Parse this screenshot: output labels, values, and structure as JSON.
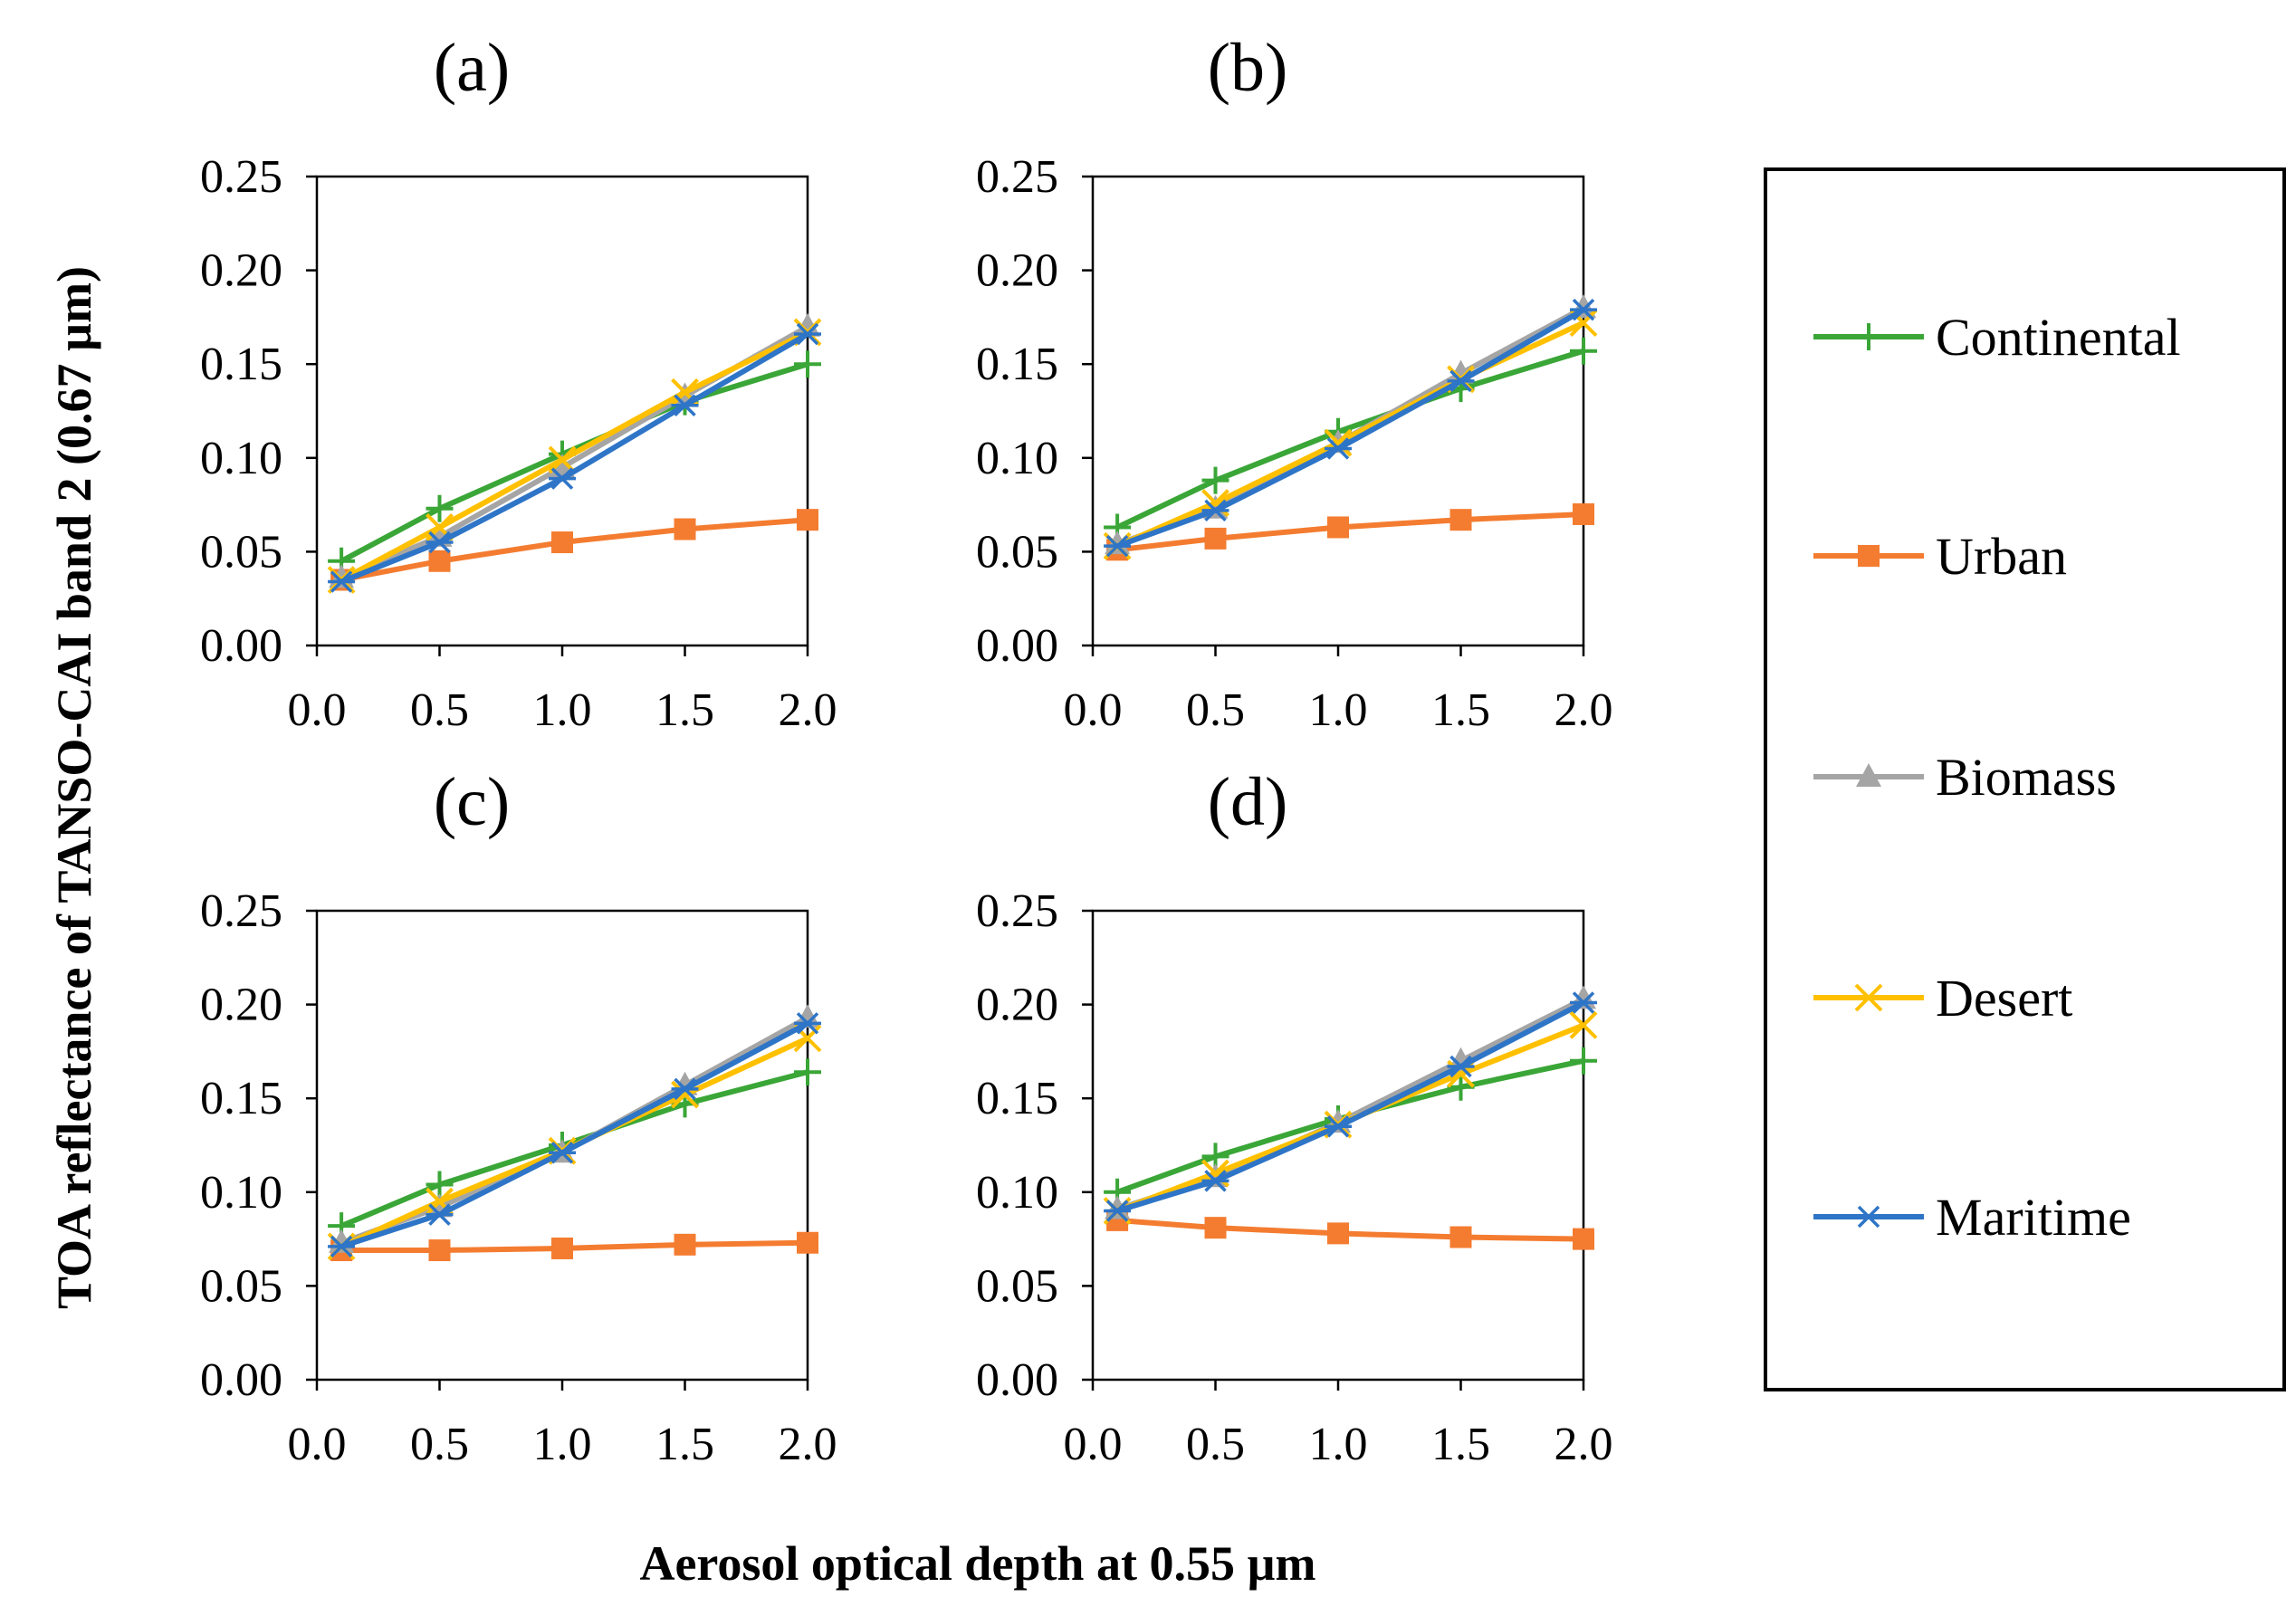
{
  "chart_data": {
    "type": "line",
    "shared_ylabel": "TOA reflectance of TANSO-CAI band 2 (0.67 µm)",
    "shared_xlabel": "Aerosol optical depth at 0.55 µm",
    "xlim": [
      0,
      2
    ],
    "ylim": [
      0,
      0.25
    ],
    "x_ticks": [
      "0.0",
      "0.5",
      "1.0",
      "1.5",
      "2.0"
    ],
    "y_ticks": [
      "0.00",
      "0.05",
      "0.10",
      "0.15",
      "0.20",
      "0.25"
    ],
    "grid": false,
    "legend_position": "right",
    "x": [
      0.1,
      0.5,
      1.0,
      1.5,
      2.0
    ],
    "series_styles": [
      {
        "name": "Continental",
        "color": "#3aa637",
        "marker": "plus"
      },
      {
        "name": "Urban",
        "color": "#f47c30",
        "marker": "square"
      },
      {
        "name": "Biomass",
        "color": "#a5a5a5",
        "marker": "triangle"
      },
      {
        "name": "Desert",
        "color": "#ffc000",
        "marker": "x"
      },
      {
        "name": "Maritime",
        "color": "#2e75c7",
        "marker": "asterisk"
      }
    ],
    "panels": [
      {
        "title": "(a)",
        "series": [
          {
            "name": "Continental",
            "values": [
              0.045,
              0.073,
              0.102,
              0.13,
              0.15
            ]
          },
          {
            "name": "Urban",
            "values": [
              0.035,
              0.045,
              0.055,
              0.062,
              0.067
            ]
          },
          {
            "name": "Biomass",
            "values": [
              0.036,
              0.058,
              0.095,
              0.133,
              0.17
            ]
          },
          {
            "name": "Desert",
            "values": [
              0.035,
              0.063,
              0.099,
              0.135,
              0.167
            ]
          },
          {
            "name": "Maritime",
            "values": [
              0.034,
              0.055,
              0.089,
              0.128,
              0.166
            ]
          }
        ]
      },
      {
        "title": "(b)",
        "series": [
          {
            "name": "Continental",
            "values": [
              0.063,
              0.088,
              0.114,
              0.137,
              0.157
            ]
          },
          {
            "name": "Urban",
            "values": [
              0.051,
              0.057,
              0.063,
              0.067,
              0.07
            ]
          },
          {
            "name": "Biomass",
            "values": [
              0.054,
              0.073,
              0.108,
              0.145,
              0.18
            ]
          },
          {
            "name": "Desert",
            "values": [
              0.053,
              0.076,
              0.108,
              0.142,
              0.172
            ]
          },
          {
            "name": "Maritime",
            "values": [
              0.053,
              0.072,
              0.105,
              0.141,
              0.179
            ]
          }
        ]
      },
      {
        "title": "(c)",
        "series": [
          {
            "name": "Continental",
            "values": [
              0.082,
              0.104,
              0.125,
              0.147,
              0.164
            ]
          },
          {
            "name": "Urban",
            "values": [
              0.069,
              0.069,
              0.07,
              0.072,
              0.073
            ]
          },
          {
            "name": "Biomass",
            "values": [
              0.073,
              0.092,
              0.121,
              0.157,
              0.193
            ]
          },
          {
            "name": "Desert",
            "values": [
              0.071,
              0.095,
              0.122,
              0.152,
              0.182
            ]
          },
          {
            "name": "Maritime",
            "values": [
              0.071,
              0.088,
              0.121,
              0.155,
              0.19
            ]
          }
        ]
      },
      {
        "title": "(d)",
        "series": [
          {
            "name": "Continental",
            "values": [
              0.1,
              0.119,
              0.139,
              0.156,
              0.17
            ]
          },
          {
            "name": "Urban",
            "values": [
              0.085,
              0.081,
              0.078,
              0.076,
              0.075
            ]
          },
          {
            "name": "Biomass",
            "values": [
              0.091,
              0.108,
              0.137,
              0.17,
              0.203
            ]
          },
          {
            "name": "Desert",
            "values": [
              0.09,
              0.11,
              0.136,
              0.163,
              0.189
            ]
          },
          {
            "name": "Maritime",
            "values": [
              0.09,
              0.106,
              0.135,
              0.167,
              0.201
            ]
          }
        ]
      }
    ]
  }
}
